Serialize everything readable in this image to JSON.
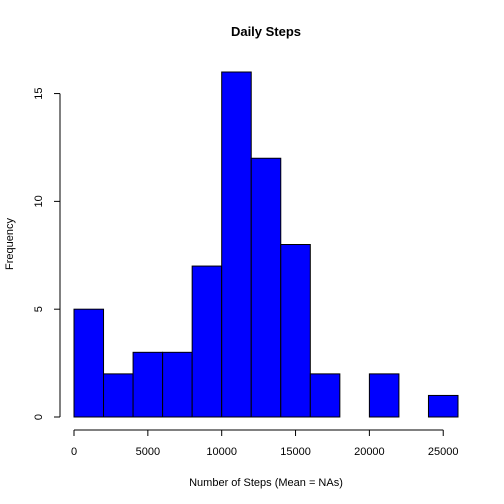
{
  "chart_data": {
    "type": "bar",
    "title": "Daily Steps",
    "xlabel": "Number of Steps (Mean = NAs)",
    "ylabel": "Frequency",
    "bar_color": "#0000ff",
    "edge_color": "#000000",
    "bins": [
      {
        "start": 0,
        "end": 2000,
        "count": 5
      },
      {
        "start": 2000,
        "end": 4000,
        "count": 2
      },
      {
        "start": 4000,
        "end": 6000,
        "count": 3
      },
      {
        "start": 6000,
        "end": 8000,
        "count": 3
      },
      {
        "start": 8000,
        "end": 10000,
        "count": 7
      },
      {
        "start": 10000,
        "end": 12000,
        "count": 16
      },
      {
        "start": 12000,
        "end": 14000,
        "count": 12
      },
      {
        "start": 14000,
        "end": 16000,
        "count": 8
      },
      {
        "start": 16000,
        "end": 18000,
        "count": 2
      },
      {
        "start": 18000,
        "end": 20000,
        "count": 0
      },
      {
        "start": 20000,
        "end": 22000,
        "count": 2
      },
      {
        "start": 22000,
        "end": 24000,
        "count": 0
      },
      {
        "start": 24000,
        "end": 26000,
        "count": 1
      }
    ],
    "x_ticks": [
      0,
      5000,
      10000,
      15000,
      20000,
      25000
    ],
    "y_ticks": [
      0,
      5,
      10,
      15
    ],
    "xlim": [
      0,
      26000
    ],
    "ylim": [
      0,
      16
    ],
    "grid": false
  }
}
